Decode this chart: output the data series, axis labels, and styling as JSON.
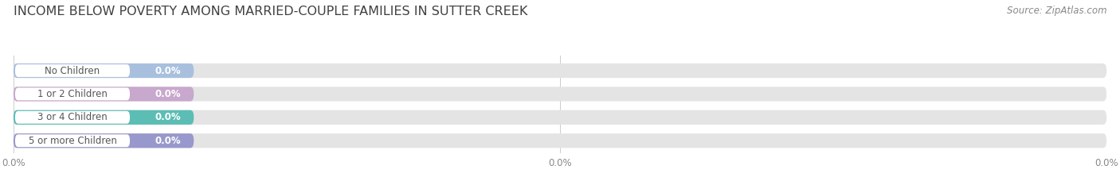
{
  "title": "INCOME BELOW POVERTY AMONG MARRIED-COUPLE FAMILIES IN SUTTER CREEK",
  "source": "Source: ZipAtlas.com",
  "categories": [
    "No Children",
    "1 or 2 Children",
    "3 or 4 Children",
    "5 or more Children"
  ],
  "values": [
    0.0,
    0.0,
    0.0,
    0.0
  ],
  "bar_colors": [
    "#a8c0de",
    "#c8a8cc",
    "#5bbdb4",
    "#9898cc"
  ],
  "bar_bg_color": "#e4e4e4",
  "background_color": "#ffffff",
  "title_fontsize": 11.5,
  "source_fontsize": 8.5,
  "label_fontsize": 8.5,
  "value_fontsize": 8.5,
  "tick_fontsize": 8.5,
  "x_ticks": [
    0.0,
    50.0,
    100.0
  ],
  "x_tick_labels": [
    "0.0%",
    "0.0%",
    "0.0%"
  ]
}
